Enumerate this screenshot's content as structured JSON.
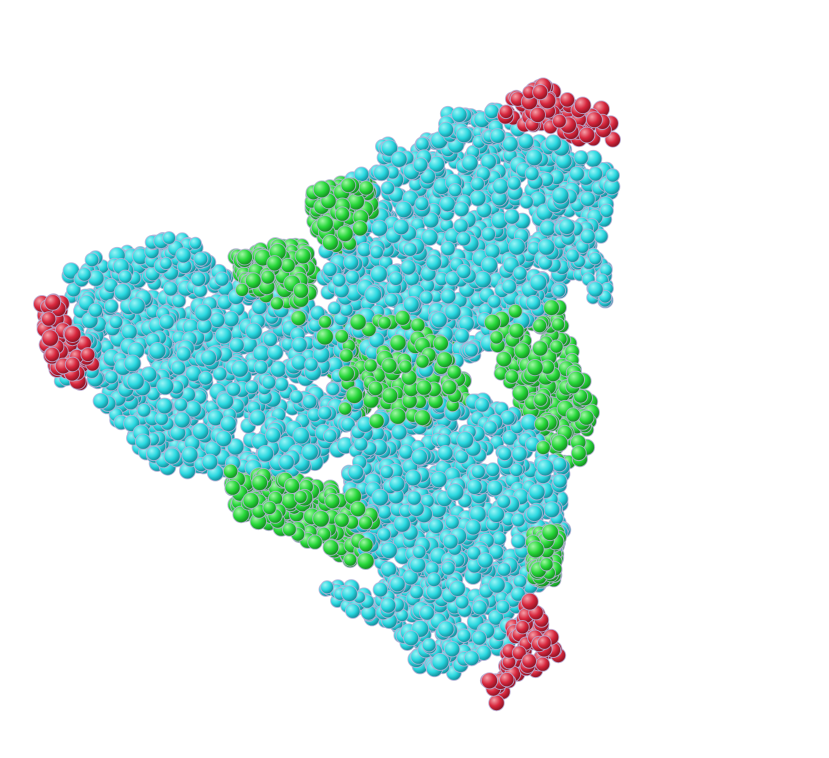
{
  "scene": {
    "background_color": "#ffffff",
    "subject": "protein-structure-space-filling-view",
    "colors": {
      "core_atoms": "#2ad8e0",
      "core_atoms_highlight": "#9af4f6",
      "core_atoms_shadow": "#128a98",
      "interface_atoms": "#27d83a",
      "interface_atoms_highlight": "#a2f7a6",
      "interface_atoms_shadow": "#138a1f",
      "terminal_atoms": "#d8283e",
      "terminal_atoms_highlight": "#f5a1aa",
      "terminal_atoms_shadow": "#8a1020",
      "atom_outline": "#b9b2d8"
    }
  }
}
